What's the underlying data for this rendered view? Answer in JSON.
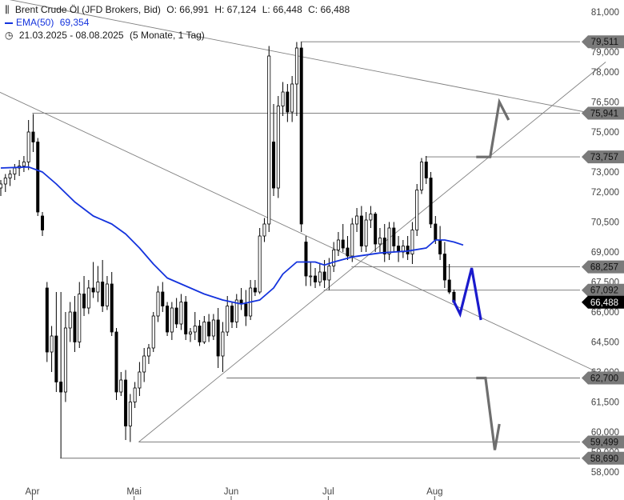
{
  "header": {
    "instrument": "Brent Crude Öl (JFD Brokers, Bid)",
    "open": "O: 66,991",
    "high": "H: 67,124",
    "low": "L: 66,448",
    "close": "C: 66,488",
    "ema_label": "EMA(50)",
    "ema_value": "69,354",
    "range": "21.03.2025 - 08.08.2025",
    "period": "(5 Monate, 1 Tag)"
  },
  "colors": {
    "candle": "#000000",
    "ema": "#1433dd",
    "trendline": "#808080",
    "level_line": "#707070",
    "arrow_gray": "#6e6e6e",
    "arrow_blue": "#1a1acc",
    "tag_bg": "#7a7a7a",
    "tag_dark": "#000000"
  },
  "chart_data": {
    "type": "candlestick",
    "ylim": [
      57.6,
      81.6
    ],
    "y_ticks": [
      "58,000",
      "59,000",
      "60,000",
      "61,500",
      "63,000",
      "64,500",
      "66,000",
      "67,500",
      "69,000",
      "70,500",
      "72,000",
      "73,000",
      "75,000",
      "76,500",
      "78,000",
      "79,000",
      "81,000"
    ],
    "y_tick_values": [
      58.0,
      59.0,
      60.0,
      61.5,
      63.0,
      64.5,
      66.0,
      67.5,
      69.0,
      70.5,
      72.0,
      73.0,
      75.0,
      76.5,
      78.0,
      79.0,
      81.0
    ],
    "x_months": [
      {
        "label": "Apr",
        "index": 7
      },
      {
        "label": "Mai",
        "index": 29
      },
      {
        "label": "Jun",
        "index": 50
      },
      {
        "label": "Jul",
        "index": 71
      },
      {
        "label": "Aug",
        "index": 94
      }
    ],
    "bars_total": 101,
    "candles": [
      [
        72.2,
        72.6,
        71.8,
        72.4
      ],
      [
        72.4,
        72.9,
        72.0,
        72.7
      ],
      [
        72.7,
        73.1,
        72.3,
        72.9
      ],
      [
        72.9,
        73.4,
        72.6,
        73.2
      ],
      [
        73.2,
        73.6,
        72.8,
        73.3
      ],
      [
        73.3,
        73.8,
        73.0,
        73.5
      ],
      [
        73.5,
        75.6,
        73.1,
        75.0
      ],
      [
        75.0,
        75.9,
        74.0,
        74.5
      ],
      [
        74.5,
        74.7,
        70.8,
        71.0
      ],
      [
        70.8,
        71.0,
        69.8,
        70.1
      ],
      [
        67.2,
        67.5,
        63.5,
        64.0
      ],
      [
        64.0,
        65.3,
        63.0,
        64.8
      ],
      [
        64.8,
        67.0,
        62.0,
        62.5
      ],
      [
        62.5,
        67.0,
        58.7,
        62.0
      ],
      [
        62.0,
        66.0,
        61.5,
        65.2
      ],
      [
        65.2,
        66.5,
        64.5,
        66.0
      ],
      [
        66.0,
        66.8,
        64.0,
        64.5
      ],
      [
        64.5,
        67.5,
        64.2,
        66.9
      ],
      [
        66.9,
        67.8,
        65.8,
        66.2
      ],
      [
        66.2,
        67.6,
        65.9,
        67.2
      ],
      [
        67.2,
        68.5,
        66.7,
        67.0
      ],
      [
        67.0,
        68.3,
        66.5,
        67.5
      ],
      [
        67.5,
        68.6,
        66.0,
        66.3
      ],
      [
        66.3,
        67.8,
        66.1,
        67.4
      ],
      [
        67.4,
        68.0,
        64.8,
        65.0
      ],
      [
        65.0,
        65.2,
        61.6,
        62.0
      ],
      [
        62.0,
        63.0,
        61.8,
        62.6
      ],
      [
        62.6,
        63.1,
        59.6,
        60.3
      ],
      [
        60.3,
        61.9,
        59.5,
        61.5
      ],
      [
        61.5,
        62.5,
        61.2,
        62.2
      ],
      [
        62.2,
        63.5,
        61.8,
        63.0
      ],
      [
        63.0,
        64.2,
        62.5,
        63.8
      ],
      [
        63.8,
        64.4,
        63.4,
        64.2
      ],
      [
        64.2,
        66.0,
        64.0,
        65.8
      ],
      [
        65.8,
        67.3,
        65.5,
        67.0
      ],
      [
        67.0,
        67.5,
        66.0,
        66.3
      ],
      [
        66.3,
        66.5,
        64.8,
        65.0
      ],
      [
        65.0,
        66.5,
        64.6,
        66.2
      ],
      [
        66.2,
        66.7,
        65.2,
        65.4
      ],
      [
        65.4,
        66.9,
        65.1,
        66.5
      ],
      [
        66.5,
        66.8,
        64.6,
        64.9
      ],
      [
        64.9,
        65.2,
        64.5,
        65.0
      ],
      [
        65.0,
        66.0,
        64.6,
        65.3
      ],
      [
        65.3,
        65.6,
        64.3,
        64.5
      ],
      [
        64.5,
        65.8,
        64.4,
        65.5
      ],
      [
        65.5,
        65.9,
        64.5,
        64.8
      ],
      [
        64.8,
        65.9,
        64.6,
        65.6
      ],
      [
        65.6,
        66.2,
        63.2,
        63.8
      ],
      [
        63.8,
        65.5,
        63.0,
        65.0
      ],
      [
        65.0,
        66.8,
        64.8,
        66.3
      ],
      [
        66.3,
        66.5,
        65.2,
        65.5
      ],
      [
        65.5,
        66.9,
        65.2,
        66.6
      ],
      [
        66.6,
        67.2,
        66.1,
        66.4
      ],
      [
        66.4,
        67.1,
        65.3,
        65.8
      ],
      [
        65.8,
        67.6,
        65.6,
        67.2
      ],
      [
        67.2,
        67.6,
        66.8,
        67.0
      ],
      [
        67.0,
        70.2,
        66.9,
        69.8
      ],
      [
        69.8,
        70.7,
        69.5,
        70.4
      ],
      [
        70.4,
        79.3,
        70.0,
        78.8
      ],
      [
        74.5,
        76.4,
        71.8,
        72.2
      ],
      [
        72.2,
        76.8,
        71.7,
        76.3
      ],
      [
        76.3,
        77.5,
        75.8,
        77.0
      ],
      [
        77.0,
        77.4,
        75.5,
        76.0
      ],
      [
        76.0,
        77.8,
        75.5,
        77.4
      ],
      [
        77.4,
        79.5,
        75.8,
        79.2
      ],
      [
        79.2,
        79.5,
        70.0,
        70.4
      ],
      [
        69.5,
        69.8,
        67.3,
        67.8
      ],
      [
        67.8,
        68.5,
        67.3,
        67.8
      ],
      [
        67.8,
        68.2,
        67.2,
        67.5
      ],
      [
        67.5,
        68.4,
        67.3,
        68.0
      ],
      [
        68.0,
        68.6,
        67.2,
        67.6
      ],
      [
        67.6,
        68.7,
        67.1,
        68.3
      ],
      [
        68.3,
        69.5,
        68.0,
        69.1
      ],
      [
        69.1,
        70.0,
        68.8,
        69.6
      ],
      [
        69.6,
        70.4,
        69.0,
        69.2
      ],
      [
        69.2,
        69.8,
        68.6,
        68.8
      ],
      [
        68.8,
        70.7,
        68.5,
        70.4
      ],
      [
        70.4,
        71.2,
        70.0,
        70.8
      ],
      [
        70.8,
        71.3,
        69.0,
        69.3
      ],
      [
        69.3,
        71.0,
        69.0,
        70.6
      ],
      [
        70.6,
        71.3,
        70.2,
        70.9
      ],
      [
        70.9,
        71.0,
        69.0,
        69.4
      ],
      [
        69.4,
        70.2,
        69.0,
        69.7
      ],
      [
        69.7,
        70.4,
        68.5,
        68.9
      ],
      [
        68.9,
        70.5,
        68.6,
        70.2
      ],
      [
        70.2,
        70.5,
        69.0,
        69.3
      ],
      [
        69.3,
        69.8,
        68.5,
        69.0
      ],
      [
        69.0,
        69.6,
        68.7,
        69.3
      ],
      [
        69.3,
        69.8,
        68.6,
        68.9
      ],
      [
        68.9,
        70.5,
        68.4,
        70.1
      ],
      [
        70.1,
        72.4,
        69.8,
        72.1
      ],
      [
        72.1,
        73.7,
        71.9,
        73.5
      ],
      [
        73.5,
        73.8,
        72.4,
        72.7
      ],
      [
        72.7,
        73.0,
        70.2,
        70.4
      ],
      [
        70.4,
        70.8,
        69.4,
        69.6
      ],
      [
        69.6,
        70.3,
        68.6,
        68.9
      ],
      [
        68.9,
        69.5,
        67.2,
        67.6
      ],
      [
        67.6,
        68.4,
        66.9,
        67.0
      ],
      [
        66.99,
        67.12,
        66.45,
        66.49
      ]
    ],
    "ema50": [
      [
        0,
        73.2
      ],
      [
        6,
        73.25
      ],
      [
        9,
        73.0
      ],
      [
        12,
        72.4
      ],
      [
        16,
        71.5
      ],
      [
        20,
        70.8
      ],
      [
        24,
        70.4
      ],
      [
        27,
        69.9
      ],
      [
        30,
        69.2
      ],
      [
        33,
        68.4
      ],
      [
        36,
        67.7
      ],
      [
        40,
        67.3
      ],
      [
        44,
        66.9
      ],
      [
        48,
        66.6
      ],
      [
        52,
        66.4
      ],
      [
        56,
        66.6
      ],
      [
        59,
        67.2
      ],
      [
        61,
        67.9
      ],
      [
        64,
        68.5
      ],
      [
        68,
        68.5
      ],
      [
        70,
        68.35
      ],
      [
        72,
        68.5
      ],
      [
        76,
        68.75
      ],
      [
        82,
        68.95
      ],
      [
        88,
        69.05
      ],
      [
        92,
        69.2
      ],
      [
        94,
        69.6
      ],
      [
        96,
        69.6
      ],
      [
        98,
        69.5
      ],
      [
        100,
        69.35
      ]
    ],
    "levels": [
      {
        "value": 79.511,
        "label": "79,511",
        "from": 65
      },
      {
        "value": 75.941,
        "label": "75,941",
        "from": 7
      },
      {
        "value": 73.757,
        "label": "73,757",
        "from": 92
      },
      {
        "value": 68.257,
        "label": "68,257",
        "from": 76
      },
      {
        "value": 67.092,
        "label": "67,092",
        "from": 70
      },
      {
        "value": 62.7,
        "label": "62,700",
        "from": 49
      },
      {
        "value": 59.499,
        "label": "59,499",
        "from": 30
      },
      {
        "value": 58.69,
        "label": "58,690",
        "from": 13
      }
    ],
    "last_price": {
      "value": 66.488,
      "label": "66,488"
    },
    "trendlines": [
      {
        "x1": -2,
        "y1": 81.8,
        "x2": 131,
        "y2": 75.8
      },
      {
        "x1": -2,
        "y1": 77.2,
        "x2": 131,
        "y2": 62.8
      },
      {
        "x1": 30,
        "y1": 59.5,
        "x2": 131,
        "y2": 78.5
      }
    ],
    "arrows": [
      {
        "color": "gray",
        "points": [
          [
            103,
            73.75
          ],
          [
            106,
            73.75
          ],
          [
            108,
            76.5
          ],
          [
            110,
            75.6
          ]
        ]
      },
      {
        "color": "blue",
        "points": [
          [
            98,
            66.6
          ],
          [
            99.5,
            65.9
          ],
          [
            102,
            68.2
          ],
          [
            104,
            65.6
          ]
        ]
      },
      {
        "color": "gray",
        "points": [
          [
            103,
            62.7
          ],
          [
            105,
            62.7
          ],
          [
            107,
            59.1
          ],
          [
            108,
            60.4
          ]
        ]
      }
    ]
  }
}
